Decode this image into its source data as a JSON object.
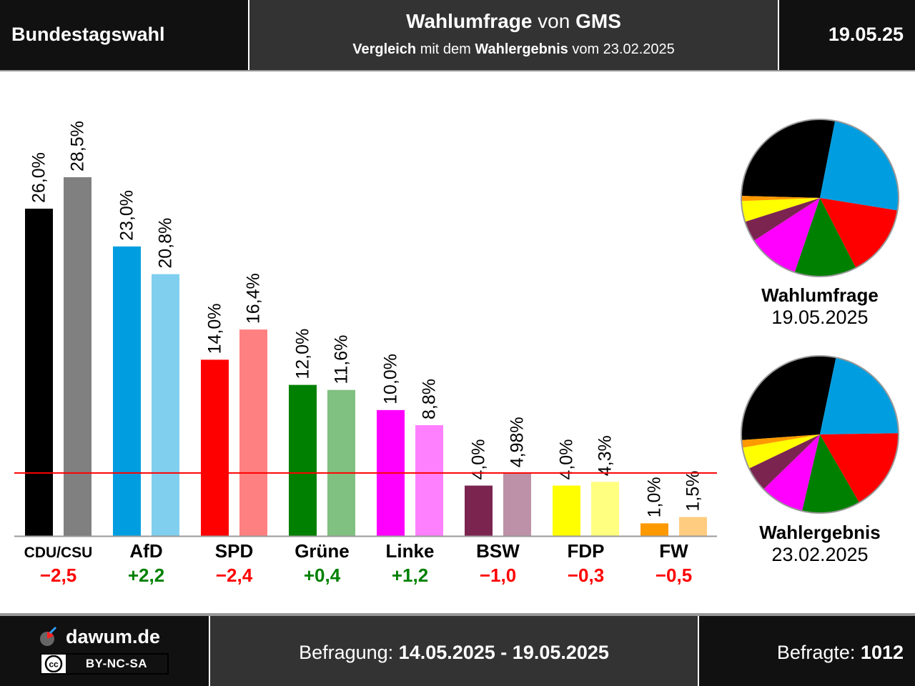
{
  "header": {
    "title": "Bundestagswahl",
    "subtitle_bold1": "Wahlumfrage",
    "subtitle_mid": " von ",
    "subtitle_bold2": "GMS",
    "compare_bold1": "Vergleich",
    "compare_mid": " mit dem ",
    "compare_bold2": "Wahlergebnis",
    "compare_end": " vom 23.02.2025",
    "date": "19.05.25"
  },
  "chart_data": {
    "type": "bar",
    "ylim": [
      0,
      30
    ],
    "threshold": 5,
    "threshold_color": "#ff0000",
    "categories": [
      "CDU/CSU",
      "AfD",
      "SPD",
      "Grüne",
      "Linke",
      "BSW",
      "FDP",
      "FW"
    ],
    "series": [
      {
        "values": [
          26.0,
          23.0,
          14.0,
          12.0,
          10.0,
          4.0,
          4.0,
          1.0
        ],
        "labels": [
          "26,0%",
          "23,0%",
          "14,0%",
          "12,0%",
          "10,0%",
          "4,0%",
          "4,0%",
          "1,0%"
        ],
        "colors": [
          "#000000",
          "#009ee0",
          "#ff0000",
          "#008000",
          "#ff00ff",
          "#7b2450",
          "#ffff00",
          "#ff9900"
        ]
      },
      {
        "values": [
          28.5,
          20.8,
          16.4,
          11.6,
          8.8,
          4.98,
          4.3,
          1.5
        ],
        "labels": [
          "28,5%",
          "20,8%",
          "16,4%",
          "11,6%",
          "8,8%",
          "4,98%",
          "4,3%",
          "1,5%"
        ],
        "colors": [
          "#808080",
          "#80cfef",
          "#ff8080",
          "#80c080",
          "#ff80ff",
          "#bd91a7",
          "#ffff80",
          "#ffcc80"
        ]
      }
    ],
    "diffs": [
      "−2,5",
      "+2,2",
      "−2,4",
      "+0,4",
      "+1,2",
      "−1,0",
      "−0,3",
      "−0,5"
    ],
    "diff_colors": [
      "#ff0000",
      "#008000",
      "#ff0000",
      "#008000",
      "#008000",
      "#ff0000",
      "#ff0000",
      "#ff0000"
    ]
  },
  "pies": [
    {
      "title": "Wahlumfrage",
      "date": "19.05.2025",
      "values": [
        26.0,
        23.0,
        14.0,
        12.0,
        10.0,
        4.0,
        4.0,
        1.0
      ],
      "colors": [
        "#000000",
        "#009ee0",
        "#ff0000",
        "#008000",
        "#ff00ff",
        "#7b2450",
        "#ffff00",
        "#ff9900"
      ]
    },
    {
      "title": "Wahlergebnis",
      "date": "23.02.2025",
      "values": [
        28.5,
        20.8,
        16.4,
        11.6,
        8.8,
        4.98,
        4.3,
        1.5
      ],
      "colors": [
        "#000000",
        "#009ee0",
        "#ff0000",
        "#008000",
        "#ff00ff",
        "#7b2450",
        "#ffff00",
        "#ff9900"
      ]
    }
  ],
  "footer": {
    "brand": "dawum.de",
    "license": "BY-NC-SA",
    "license_mark": "cc",
    "survey_label": "Befragung: ",
    "survey_period": "14.05.2025 - 19.05.2025",
    "respondents_label": "Befragte: ",
    "respondents": "1012"
  }
}
